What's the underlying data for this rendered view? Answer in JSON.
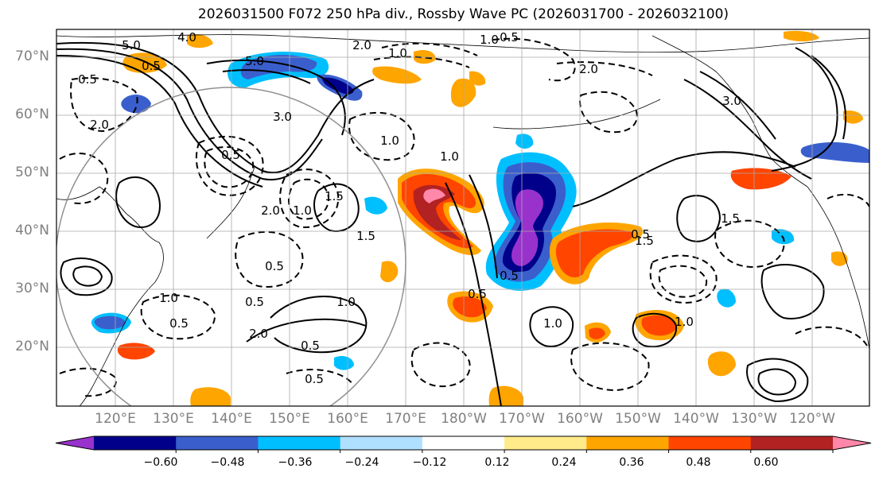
{
  "title": "2026031500 F072 250 hPa div., Rossby Wave PC (2026031700 - 2026032100)",
  "lat_labels": [
    "70°N",
    "60°N",
    "50°N",
    "40°N",
    "30°N",
    "20°N"
  ],
  "lon_labels": [
    "120°E",
    "130°E",
    "140°E",
    "150°E",
    "160°E",
    "170°E",
    "180°W",
    "170°W",
    "160°W",
    "150°W",
    "140°W",
    "130°W",
    "120°W"
  ],
  "colorbar": {
    "ticks": [
      "−0.60",
      "−0.48",
      "−0.36",
      "−0.24",
      "−0.12",
      "0.12",
      "0.24",
      "0.36",
      "0.48",
      "0.60"
    ],
    "colors": [
      "#9932cc",
      "#00008b",
      "#3a5fcd",
      "#00bfff",
      "#b0e0ff",
      "#ffffff",
      "#ffeb8a",
      "#ffa500",
      "#ff4500",
      "#b22222",
      "#ff88aa"
    ]
  },
  "contour_labels": [
    "5.0",
    "4.0",
    "0.5",
    "2.0",
    "1.0",
    "3.0",
    "3.0",
    "5.0",
    "0.5",
    "1.0",
    "2.0",
    "1.0",
    "0.5",
    "1.0",
    "0.5",
    "1.0",
    "2.0",
    "1.5",
    "0.5",
    "1.0",
    "0.5",
    "0.5",
    "1.5",
    "2.0",
    "0.5",
    "1.0",
    "0.5",
    "2.0",
    "1.0",
    "0.5",
    "1.5",
    "0.5",
    "1.0",
    "0.5",
    "1.5"
  ]
}
